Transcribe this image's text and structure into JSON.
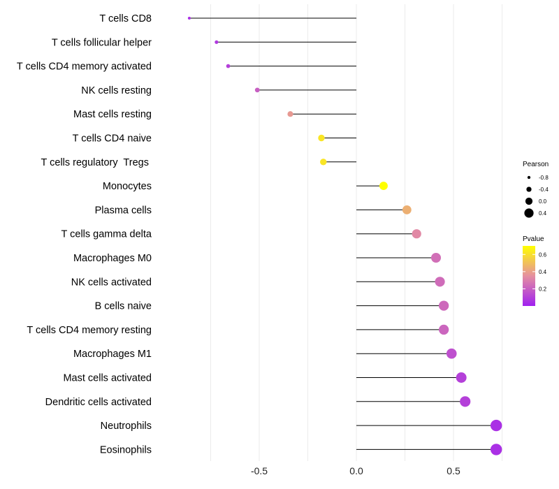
{
  "chart_data": {
    "type": "lollipop",
    "categories": [
      "T cells CD8",
      "T cells follicular helper",
      "T cells CD4 memory activated",
      "NK cells resting",
      "Mast cells resting",
      "T cells CD4 naive",
      "T cells regulatory  Tregs ",
      "Monocytes",
      "Plasma cells",
      "T cells gamma delta",
      "Macrophages M0",
      "NK cells activated",
      "B cells naive",
      "T cells CD4 memory resting",
      "Macrophages M1",
      "Mast cells activated",
      "Dendritic cells activated",
      "Neutrophils",
      "Eosinophils"
    ],
    "values": [
      -0.86,
      -0.72,
      -0.66,
      -0.51,
      -0.34,
      -0.18,
      -0.17,
      0.14,
      0.26,
      0.31,
      0.41,
      0.43,
      0.45,
      0.45,
      0.49,
      0.54,
      0.56,
      0.72,
      0.72
    ],
    "pvalues": [
      0.05,
      0.08,
      0.1,
      0.2,
      0.38,
      0.62,
      0.62,
      0.7,
      0.45,
      0.33,
      0.25,
      0.24,
      0.23,
      0.22,
      0.15,
      0.1,
      0.1,
      0.05,
      0.05
    ],
    "xlim": [
      -1.0,
      0.82
    ],
    "xticks": [
      -0.5,
      0.0,
      0.5
    ],
    "xtick_labels": [
      "-0.5",
      "0.0",
      "0.5"
    ],
    "grid": true,
    "legend_position": "right",
    "size_legend": {
      "title": "Pearson",
      "values": [
        -0.8,
        -0.4,
        0.0,
        0.4
      ],
      "labels": [
        "-0.8",
        "-0.4",
        "0.0",
        "0.4"
      ]
    },
    "color_legend": {
      "title": "Pvalue",
      "range": [
        0.0,
        0.7
      ],
      "ticks": [
        0.6,
        0.4,
        0.2
      ],
      "tick_labels": [
        "0.6",
        "0.4",
        "0.2"
      ],
      "low_color": "#a020f0",
      "mid_color": "#e58fa0",
      "high_color": "#ffff00"
    },
    "stem_color": "#000000",
    "grid_color": "#ebebeb"
  }
}
